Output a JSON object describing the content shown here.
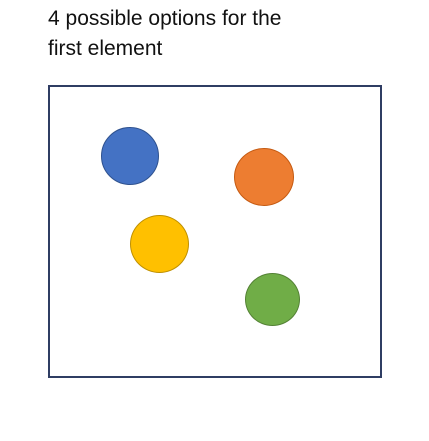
{
  "caption": {
    "line1": "4 possible options for the",
    "line2": "first element"
  },
  "frame": {
    "border_color": "#2f3d63"
  },
  "options": [
    {
      "name": "blue",
      "fill": "#4472c4",
      "stroke": "#2f528f"
    },
    {
      "name": "orange",
      "fill": "#ed7d31",
      "stroke": "#c55a11"
    },
    {
      "name": "yellow",
      "fill": "#ffc000",
      "stroke": "#bf9000"
    },
    {
      "name": "green",
      "fill": "#70ad47",
      "stroke": "#548235"
    }
  ]
}
